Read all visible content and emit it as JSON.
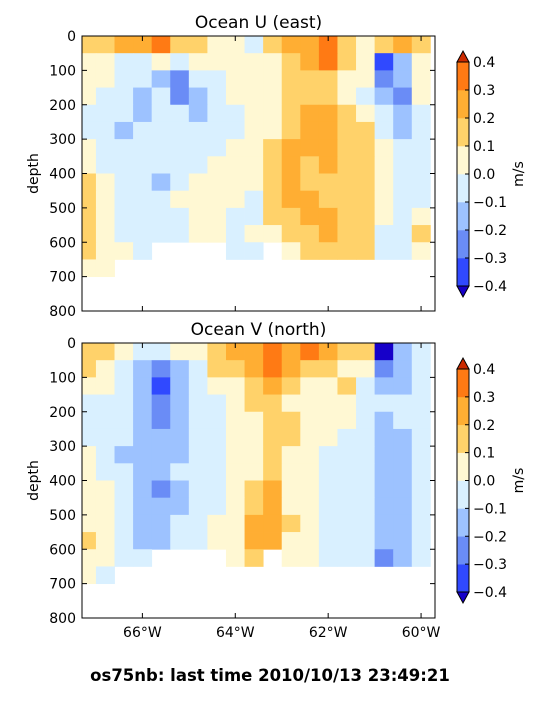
{
  "footer_text": "os75nb: last time 2010/10/13 23:49:21",
  "colorbar": {
    "unit": "m/s",
    "levels": [
      -0.4,
      -0.3,
      -0.2,
      -0.1,
      0.0,
      0.1,
      0.2,
      0.3,
      0.4
    ],
    "tick_labels": [
      "−0.4",
      "−0.3",
      "−0.2",
      "−0.1",
      "0.0",
      "0.1",
      "0.2",
      "0.3",
      "0.4"
    ],
    "colors": [
      "#3049ff",
      "#6a8cf6",
      "#9dc2ff",
      "#d9f0ff",
      "#fff8d3",
      "#ffd26a",
      "#ffae33",
      "#ff7a14"
    ],
    "under_color": "#1600c9",
    "over_color": "#cc2a00"
  },
  "chart_data": [
    {
      "type": "heatmap",
      "title": "Ocean U (east)",
      "ylabel": "depth",
      "ylim": [
        800,
        0
      ],
      "xlim": [
        -67.3,
        -59.7
      ],
      "yticks": [
        0,
        100,
        200,
        300,
        400,
        500,
        600,
        700,
        800
      ],
      "xticks": [
        -66,
        -64,
        -62,
        -60
      ],
      "xtick_labels": [],
      "x": [
        -67.2,
        -66.8,
        -66.4,
        -66.0,
        -65.6,
        -65.2,
        -64.8,
        -64.4,
        -64.0,
        -63.6,
        -63.2,
        -62.8,
        -62.4,
        -62.0,
        -61.6,
        -61.2,
        -60.8,
        -60.4,
        -60.0
      ],
      "depths": [
        25,
        75,
        125,
        175,
        225,
        275,
        325,
        375,
        425,
        475,
        525,
        575,
        625,
        675
      ],
      "values": [
        [
          0.15,
          0.15,
          0.2,
          0.25,
          0.35,
          0.15,
          0.1,
          0.05,
          0.0,
          -0.05,
          0.1,
          0.2,
          0.25,
          0.3,
          0.15,
          0.05,
          0.1,
          0.2,
          0.1
        ],
        [
          0.05,
          0.0,
          -0.05,
          -0.05,
          0.0,
          -0.05,
          0.0,
          0.05,
          0.0,
          0.0,
          0.05,
          0.15,
          0.25,
          0.3,
          0.15,
          0.05,
          -0.35,
          -0.15,
          0.05
        ],
        [
          0.05,
          0.0,
          -0.1,
          -0.1,
          -0.15,
          -0.25,
          -0.1,
          -0.05,
          0.05,
          0.0,
          0.05,
          0.1,
          0.15,
          0.15,
          0.05,
          0.0,
          -0.25,
          -0.15,
          0.05
        ],
        [
          0.0,
          -0.05,
          -0.1,
          -0.15,
          -0.05,
          -0.25,
          -0.15,
          -0.05,
          0.0,
          0.05,
          0.05,
          0.1,
          0.15,
          0.1,
          0.05,
          -0.05,
          -0.15,
          -0.25,
          0.0
        ],
        [
          -0.05,
          -0.05,
          -0.1,
          -0.15,
          -0.05,
          -0.1,
          -0.15,
          -0.05,
          -0.05,
          0.0,
          0.05,
          0.15,
          0.2,
          0.25,
          0.15,
          0.05,
          -0.05,
          -0.2,
          -0.05
        ],
        [
          -0.05,
          -0.05,
          -0.15,
          -0.1,
          -0.05,
          -0.05,
          -0.1,
          -0.05,
          -0.05,
          0.0,
          0.05,
          0.15,
          0.25,
          0.2,
          0.15,
          0.1,
          -0.05,
          -0.15,
          -0.05
        ],
        [
          0.0,
          -0.05,
          -0.1,
          -0.05,
          -0.05,
          -0.05,
          -0.05,
          -0.05,
          0.0,
          0.0,
          0.1,
          0.2,
          0.25,
          0.25,
          0.15,
          0.1,
          0.0,
          -0.1,
          -0.05
        ],
        [
          0.05,
          -0.05,
          -0.05,
          -0.1,
          -0.05,
          -0.05,
          -0.05,
          0.0,
          0.05,
          0.0,
          0.15,
          0.2,
          0.15,
          0.2,
          0.15,
          0.1,
          0.0,
          -0.05,
          -0.1
        ],
        [
          0.1,
          0.0,
          -0.05,
          -0.1,
          -0.15,
          -0.05,
          0.05,
          0.05,
          0.05,
          0.0,
          0.15,
          0.2,
          0.15,
          0.15,
          0.15,
          0.1,
          0.05,
          -0.05,
          -0.1
        ],
        [
          0.15,
          0.05,
          -0.05,
          -0.1,
          -0.05,
          0.0,
          0.05,
          0.05,
          0.0,
          -0.05,
          0.15,
          0.2,
          0.2,
          0.15,
          0.15,
          0.1,
          0.05,
          -0.1,
          -0.05
        ],
        [
          0.1,
          0.05,
          -0.05,
          -0.05,
          -0.05,
          -0.05,
          0.05,
          0.0,
          -0.05,
          -0.05,
          0.1,
          0.15,
          0.25,
          0.2,
          0.15,
          0.1,
          0.05,
          -0.1,
          0.0
        ],
        [
          0.15,
          0.05,
          -0.05,
          -0.05,
          -0.05,
          -0.05,
          0.0,
          0.0,
          -0.05,
          0.0,
          0.05,
          0.15,
          0.15,
          0.2,
          0.15,
          0.1,
          -0.05,
          -0.05,
          0.15
        ],
        [
          0.1,
          0.05,
          0.0,
          -0.05,
          null,
          null,
          null,
          null,
          -0.05,
          -0.05,
          null,
          0.05,
          0.1,
          0.1,
          0.15,
          0.1,
          -0.05,
          -0.05,
          0.05
        ],
        [
          0.05,
          0.0,
          null,
          null,
          null,
          null,
          null,
          null,
          null,
          null,
          null,
          null,
          null,
          null,
          null,
          null,
          null,
          null,
          null
        ]
      ]
    },
    {
      "type": "heatmap",
      "title": "Ocean V (north)",
      "ylabel": "depth",
      "ylim": [
        800,
        0
      ],
      "xlim": [
        -67.3,
        -59.7
      ],
      "yticks": [
        0,
        100,
        200,
        300,
        400,
        500,
        600,
        700,
        800
      ],
      "xticks": [
        -66,
        -64,
        -62,
        -60
      ],
      "xtick_labels": [
        "66°W",
        "64°W",
        "62°W",
        "60°W"
      ],
      "x": [
        -67.2,
        -66.8,
        -66.4,
        -66.0,
        -65.6,
        -65.2,
        -64.8,
        -64.4,
        -64.0,
        -63.6,
        -63.2,
        -62.8,
        -62.4,
        -62.0,
        -61.6,
        -61.2,
        -60.8,
        -60.4,
        -60.0
      ],
      "depths": [
        25,
        75,
        125,
        175,
        225,
        275,
        325,
        375,
        425,
        475,
        525,
        575,
        625,
        675
      ],
      "values": [
        [
          0.15,
          0.1,
          0.0,
          -0.05,
          -0.05,
          0.05,
          0.0,
          0.15,
          0.2,
          0.25,
          0.3,
          0.25,
          0.3,
          0.2,
          0.15,
          0.1,
          -0.45,
          -0.15,
          -0.05
        ],
        [
          0.1,
          0.0,
          -0.05,
          -0.2,
          -0.25,
          -0.15,
          -0.05,
          0.1,
          0.15,
          0.25,
          0.3,
          0.2,
          0.15,
          0.1,
          0.05,
          0.0,
          -0.25,
          -0.15,
          -0.1
        ],
        [
          0.0,
          0.0,
          -0.1,
          -0.2,
          -0.35,
          -0.2,
          -0.05,
          0.05,
          0.05,
          0.15,
          0.2,
          0.1,
          0.05,
          0.05,
          0.1,
          -0.05,
          -0.15,
          -0.15,
          -0.1
        ],
        [
          -0.05,
          -0.05,
          -0.1,
          -0.15,
          -0.3,
          -0.15,
          -0.05,
          -0.05,
          0.0,
          0.1,
          0.15,
          0.05,
          0.05,
          0.0,
          0.05,
          -0.05,
          -0.1,
          -0.1,
          -0.1
        ],
        [
          -0.05,
          -0.05,
          -0.1,
          -0.2,
          -0.25,
          -0.15,
          -0.05,
          -0.05,
          0.0,
          0.05,
          0.1,
          0.15,
          0.05,
          0.0,
          0.0,
          -0.05,
          -0.15,
          -0.1,
          -0.1
        ],
        [
          -0.05,
          -0.05,
          -0.1,
          -0.2,
          -0.2,
          -0.15,
          -0.1,
          -0.05,
          0.0,
          0.05,
          0.15,
          0.1,
          0.05,
          0.0,
          -0.05,
          -0.05,
          -0.15,
          -0.15,
          -0.1
        ],
        [
          0.0,
          -0.05,
          -0.15,
          -0.2,
          -0.2,
          -0.15,
          -0.1,
          -0.05,
          0.0,
          0.05,
          0.1,
          0.05,
          0.0,
          -0.05,
          -0.05,
          -0.05,
          -0.15,
          -0.15,
          -0.1
        ],
        [
          0.05,
          -0.05,
          -0.1,
          -0.15,
          -0.2,
          -0.1,
          -0.05,
          -0.05,
          0.0,
          0.05,
          0.15,
          0.05,
          0.0,
          -0.05,
          -0.05,
          -0.1,
          -0.15,
          -0.2,
          -0.1
        ],
        [
          0.05,
          0.0,
          -0.1,
          -0.15,
          -0.25,
          -0.15,
          -0.05,
          -0.05,
          0.0,
          0.1,
          0.2,
          0.05,
          0.0,
          -0.05,
          -0.1,
          -0.1,
          -0.2,
          -0.15,
          -0.1
        ],
        [
          0.05,
          0.0,
          -0.05,
          -0.15,
          -0.2,
          -0.15,
          -0.05,
          -0.05,
          0.0,
          0.15,
          0.2,
          0.05,
          0.0,
          -0.05,
          -0.1,
          -0.1,
          -0.2,
          -0.15,
          -0.1
        ],
        [
          0.05,
          0.0,
          -0.1,
          -0.15,
          -0.15,
          -0.1,
          -0.05,
          0.0,
          0.0,
          0.2,
          0.25,
          0.1,
          0.0,
          -0.05,
          -0.05,
          -0.1,
          -0.15,
          -0.15,
          -0.1
        ],
        [
          0.1,
          0.0,
          -0.1,
          -0.15,
          -0.15,
          -0.1,
          -0.05,
          0.0,
          0.05,
          0.2,
          0.2,
          0.05,
          0.0,
          -0.05,
          -0.05,
          -0.1,
          -0.15,
          -0.15,
          -0.1
        ],
        [
          0.05,
          0.0,
          -0.05,
          -0.1,
          null,
          null,
          null,
          null,
          0.05,
          0.1,
          null,
          0.05,
          0.0,
          -0.05,
          -0.05,
          -0.1,
          -0.25,
          -0.15,
          -0.1
        ],
        [
          0.05,
          -0.05,
          null,
          null,
          null,
          null,
          null,
          null,
          null,
          null,
          null,
          null,
          null,
          null,
          null,
          null,
          null,
          null,
          null
        ]
      ]
    }
  ]
}
